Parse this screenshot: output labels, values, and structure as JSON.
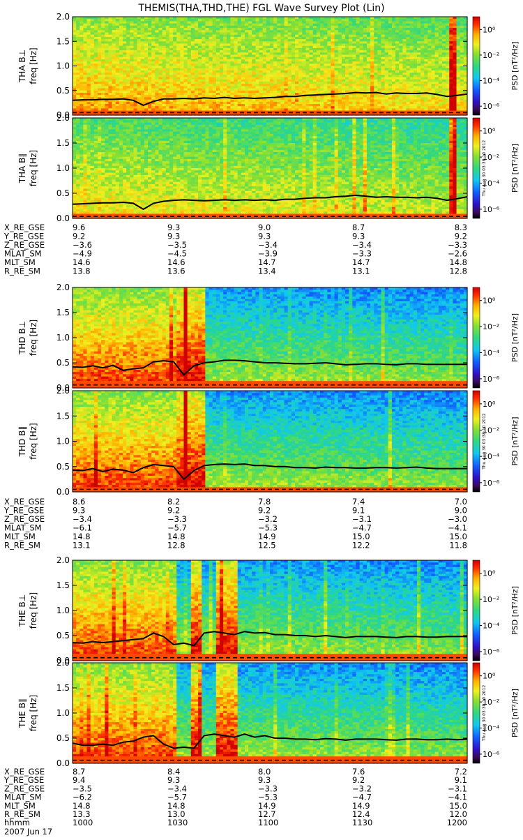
{
  "title": "THEMIS(THA,THD,THE) FGL Wave Survey Plot (Lin)",
  "colorbar": {
    "label": "PSD [nT²/Hz]",
    "tick_labels": [
      "10⁰",
      "10⁻²",
      "10⁻⁴",
      "10⁻⁶"
    ],
    "log10_range": [
      -6.7,
      1.0
    ]
  },
  "timestamp_note": "Thu Aug 30 03:38:10 2012",
  "axis": {
    "ylabel": "freq [Hz]",
    "yticks": [
      "0.0",
      "0.5",
      "1.0",
      "1.5",
      "2.0"
    ],
    "ylim": [
      0,
      2.0
    ]
  },
  "chart_data": [
    {
      "type": "heatmap",
      "probe": "THA",
      "panels": [
        {
          "label": "THA B⊥",
          "trend_line": [
            0.3,
            0.31,
            0.31,
            0.32,
            0.32,
            0.33,
            0.3,
            0.2,
            0.28,
            0.33,
            0.33,
            0.34,
            0.33,
            0.35,
            0.34,
            0.36,
            0.34,
            0.35,
            0.34,
            0.35,
            0.36,
            0.38,
            0.38,
            0.4,
            0.41,
            0.42,
            0.43,
            0.44,
            0.46,
            0.45,
            0.46,
            0.43,
            0.45,
            0.44,
            0.44,
            0.45,
            0.42,
            0.38,
            0.4,
            0.43
          ],
          "red_bands": [
            0.96
          ],
          "noise_floor": 0.05
        },
        {
          "label": "THA B∥",
          "trend_line": [
            0.28,
            0.29,
            0.3,
            0.31,
            0.31,
            0.32,
            0.3,
            0.18,
            0.3,
            0.34,
            0.36,
            0.37,
            0.36,
            0.35,
            0.36,
            0.37,
            0.36,
            0.37,
            0.36,
            0.37,
            0.36,
            0.38,
            0.38,
            0.4,
            0.41,
            0.41,
            0.43,
            0.44,
            0.46,
            0.44,
            0.42,
            0.43,
            0.42,
            0.42,
            0.41,
            0.42,
            0.4,
            0.36,
            0.39,
            0.43
          ],
          "red_bands": [
            0.96
          ],
          "noise_floor": 0.04
        }
      ],
      "ephemeris": {
        "labels": [
          "X_RE_GSE",
          "Y_RE_GSE",
          "Z_RE_GSE",
          "MLAT_SM",
          "MLT_SM",
          "R_RE_SM"
        ],
        "columns": [
          [
            "9.6",
            "9.2",
            "−3.6",
            "−4.9",
            "14.6",
            "13.8"
          ],
          [
            "9.3",
            "9.3",
            "−3.5",
            "−4.5",
            "14.6",
            "13.6"
          ],
          [
            "9.0",
            "9.3",
            "−3.4",
            "−3.9",
            "14.7",
            "13.4"
          ],
          [
            "8.7",
            "9.3",
            "−3.4",
            "−3.3",
            "14.7",
            "13.1"
          ],
          [
            "8.3",
            "9.2",
            "−3.3",
            "−2.6",
            "14.8",
            "12.8"
          ]
        ]
      }
    },
    {
      "type": "heatmap",
      "probe": "THD",
      "panels": [
        {
          "label": "THD B⊥",
          "trend_line": [
            0.42,
            0.41,
            0.44,
            0.4,
            0.45,
            0.35,
            0.38,
            0.4,
            0.52,
            0.54,
            0.52,
            0.26,
            0.44,
            0.5,
            0.52,
            0.55,
            0.55,
            0.54,
            0.52,
            0.5,
            0.5,
            0.49,
            0.48,
            0.48,
            0.49,
            0.5,
            0.48,
            0.46,
            0.47,
            0.48,
            0.48,
            0.47,
            0.46,
            0.48,
            0.48,
            0.47,
            0.47,
            0.47,
            0.47,
            0.47
          ],
          "red_bands": [
            0.27,
            0.29,
            0.32
          ],
          "noise_floor": 0.06
        },
        {
          "label": "THD B∥",
          "trend_line": [
            0.43,
            0.42,
            0.46,
            0.4,
            0.45,
            0.43,
            0.38,
            0.48,
            0.54,
            0.52,
            0.5,
            0.25,
            0.42,
            0.52,
            0.54,
            0.55,
            0.54,
            0.55,
            0.52,
            0.52,
            0.5,
            0.5,
            0.48,
            0.48,
            0.47,
            0.49,
            0.48,
            0.48,
            0.47,
            0.47,
            0.48,
            0.48,
            0.47,
            0.48,
            0.49,
            0.47,
            0.46,
            0.46,
            0.46,
            0.46
          ],
          "red_bands": [
            0.27,
            0.29,
            0.32
          ],
          "noise_floor": 0.05
        }
      ],
      "ephemeris": {
        "labels": [
          "X_RE_GSE",
          "Y_RE_GSE",
          "Z_RE_GSE",
          "MLAT_SM",
          "MLT_SM",
          "R_RE_SM"
        ],
        "columns": [
          [
            "8.6",
            "9.3",
            "−3.4",
            "−6.1",
            "14.8",
            "13.1"
          ],
          [
            "8.2",
            "9.2",
            "−3.3",
            "−5.7",
            "14.8",
            "12.8"
          ],
          [
            "7.8",
            "9.2",
            "−3.2",
            "−5.3",
            "14.9",
            "12.5"
          ],
          [
            "7.4",
            "9.1",
            "−3.1",
            "−4.7",
            "15.0",
            "12.2"
          ],
          [
            "7.0",
            "9.0",
            "−3.0",
            "−4.1",
            "15.0",
            "11.8"
          ]
        ]
      }
    },
    {
      "type": "heatmap",
      "probe": "THE",
      "panels": [
        {
          "label": "THE B⊥",
          "trend_line": [
            0.36,
            0.35,
            0.38,
            0.36,
            0.38,
            0.4,
            0.42,
            0.44,
            0.55,
            0.48,
            0.32,
            0.35,
            0.3,
            0.55,
            0.58,
            0.55,
            0.52,
            0.58,
            0.55,
            0.56,
            0.52,
            0.52,
            0.5,
            0.5,
            0.48,
            0.5,
            0.48,
            0.46,
            0.48,
            0.48,
            0.48,
            0.47,
            0.46,
            0.48,
            0.48,
            0.47,
            0.47,
            0.48,
            0.48,
            0.48
          ],
          "red_bands": [
            0.31,
            0.37,
            0.4
          ],
          "noise_floor": 0.06
        },
        {
          "label": "THE B∥",
          "trend_line": [
            0.4,
            0.36,
            0.36,
            0.38,
            0.36,
            0.42,
            0.44,
            0.52,
            0.55,
            0.38,
            0.3,
            0.32,
            0.3,
            0.55,
            0.58,
            0.55,
            0.52,
            0.58,
            0.52,
            0.55,
            0.5,
            0.5,
            0.48,
            0.48,
            0.47,
            0.49,
            0.48,
            0.46,
            0.48,
            0.48,
            0.48,
            0.47,
            0.46,
            0.48,
            0.48,
            0.47,
            0.47,
            0.48,
            0.47,
            0.48
          ],
          "red_bands": [
            0.31,
            0.37,
            0.4
          ],
          "noise_floor": 0.06
        }
      ],
      "ephemeris": {
        "labels": [
          "X_RE_GSE",
          "Y_RE_GSE",
          "Z_RE_GSE",
          "MLAT_SM",
          "MLT_SM",
          "R_RE_SM",
          "hhmm"
        ],
        "columns": [
          [
            "8.7",
            "9.4",
            "−3.5",
            "−6.2",
            "14.8",
            "13.3",
            "1000"
          ],
          [
            "8.4",
            "9.3",
            "−3.4",
            "−5.7",
            "14.8",
            "13.0",
            "1030"
          ],
          [
            "8.0",
            "9.3",
            "−3.3",
            "−5.3",
            "14.9",
            "12.7",
            "1100"
          ],
          [
            "7.6",
            "9.2",
            "−3.2",
            "−4.7",
            "14.9",
            "12.4",
            "1130"
          ],
          [
            "7.2",
            "9.1",
            "−3.1",
            "−4.1",
            "15.0",
            "12.0",
            "1200"
          ]
        ]
      }
    }
  ],
  "date_label": "2007 Jun 17"
}
